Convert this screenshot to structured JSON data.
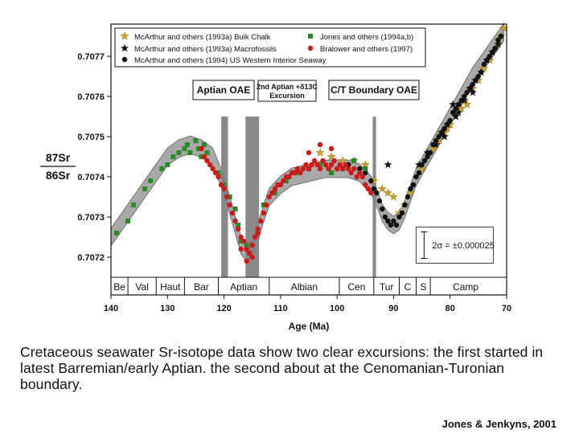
{
  "caption": "Cretaceous seawater Sr-isotope data show two clear excursions: the first started in latest Barremian/early Aptian. the second about at the Cenomanian-Turonian boundary.",
  "credit": "Jones & Jenkyns, 2001",
  "chart_data": {
    "type": "scatter",
    "xlabel": "Age (Ma)",
    "ylabel_num": "87Sr",
    "ylabel_den": "86Sr",
    "xlim": [
      140,
      70
    ],
    "ylim": [
      0.70715,
      0.70778
    ],
    "x_ticks": [
      140,
      130,
      120,
      110,
      100,
      90,
      80,
      70
    ],
    "y_ticks": [
      0.7072,
      0.7073,
      0.7074,
      0.7075,
      0.7076,
      0.7077
    ],
    "colors": {
      "gold": "#c9a032",
      "red": "#cc1a1a",
      "green": "#2a8a2a",
      "black": "#111111",
      "band": "#808080"
    },
    "legend": [
      {
        "label": "McArthur and others (1993a) Bulk Chalk",
        "marker": "star",
        "color": "#c9a032"
      },
      {
        "label": "McArthur and others (1993a) Macrofossils",
        "marker": "star",
        "color": "#111111"
      },
      {
        "label": "McArthur and others (1994) US Western Interior Seaway",
        "marker": "dot",
        "color": "#111111"
      },
      {
        "label": "Jones and others (1994a,b)",
        "marker": "square",
        "color": "#2a8a2a"
      },
      {
        "label": "Bralower and others (1997)",
        "marker": "dot",
        "color": "#cc1a1a"
      }
    ],
    "events": [
      {
        "label": "Aptian OAE",
        "x0": 120.5,
        "x1": 119.3
      },
      {
        "label": "2nd Aptian +δ13C Excursion",
        "x0": 116.2,
        "x1": 113.8
      },
      {
        "label": "C/T Boundary OAE",
        "x0": 93.7,
        "x1": 93.1
      }
    ],
    "stages": [
      {
        "name": "Be",
        "from": 140,
        "to": 137
      },
      {
        "name": "Val",
        "from": 137,
        "to": 132
      },
      {
        "name": "Haut",
        "from": 132,
        "to": 127
      },
      {
        "name": "Bar",
        "from": 127,
        "to": 121
      },
      {
        "name": "Aptian",
        "from": 121,
        "to": 112
      },
      {
        "name": "Albian",
        "from": 112,
        "to": 99.6
      },
      {
        "name": "Cen",
        "from": 99.6,
        "to": 93.5
      },
      {
        "name": "Tur",
        "from": 93.5,
        "to": 89
      },
      {
        "name": "C",
        "from": 89,
        "to": 86
      },
      {
        "name": "S",
        "from": 86,
        "to": 83.5
      },
      {
        "name": "Camp",
        "from": 83.5,
        "to": 71
      }
    ],
    "error_bar": {
      "label": "2σ = ±0.000025",
      "half_width": 2.5e-05,
      "x": 71.8,
      "y": 0.70723
    },
    "trend": {
      "x": [
        140,
        138,
        135,
        132,
        130,
        128,
        126,
        124,
        122,
        120,
        118,
        117,
        116,
        115,
        114,
        113,
        112,
        110,
        108,
        105,
        102,
        100,
        98,
        96,
        94,
        93,
        92,
        91,
        90,
        89,
        88,
        87,
        86,
        84,
        82,
        80,
        78,
        76,
        74,
        72,
        70.5
      ],
      "y": [
        0.70725,
        0.70729,
        0.70735,
        0.70741,
        0.70745,
        0.70747,
        0.70748,
        0.70747,
        0.70745,
        0.70738,
        0.70728,
        0.70723,
        0.70721,
        0.70722,
        0.70726,
        0.70731,
        0.70735,
        0.70738,
        0.7074,
        0.70741,
        0.70742,
        0.70742,
        0.70742,
        0.70741,
        0.70738,
        0.70735,
        0.70731,
        0.70729,
        0.70728,
        0.70729,
        0.70732,
        0.70736,
        0.7074,
        0.70745,
        0.7075,
        0.70755,
        0.7076,
        0.70765,
        0.70769,
        0.70773,
        0.70776
      ],
      "half_width": 2.2e-05
    },
    "series": [
      {
        "name": "McArthur and others (1993a) Bulk Chalk",
        "marker": "star",
        "color": "#c9a032",
        "x": [
          103,
          101,
          99,
          97,
          95,
          93.5,
          92,
          91,
          90,
          89,
          88,
          87,
          85,
          83,
          81,
          80,
          79,
          78,
          77,
          76,
          75,
          74,
          73,
          72,
          71.5,
          71,
          70.5,
          82,
          80.5,
          77.5
        ],
        "y": [
          0.70746,
          0.70745,
          0.70744,
          0.70744,
          0.70743,
          0.70739,
          0.70737,
          0.70736,
          0.70735,
          0.70731,
          0.70733,
          0.70736,
          0.70742,
          0.70747,
          0.70751,
          0.70753,
          0.70755,
          0.70757,
          0.70758,
          0.70762,
          0.70764,
          0.70767,
          0.70769,
          0.70772,
          0.70774,
          0.70775,
          0.70777,
          0.70749,
          0.70752,
          0.7076
        ]
      },
      {
        "name": "McArthur and others (1993a) Macrofossils",
        "marker": "star",
        "color": "#111111",
        "x": [
          91,
          85.5,
          84,
          82.5,
          81.5,
          80.5,
          79.5,
          78.5,
          77.5,
          76.5,
          75.5,
          74.5,
          73.5,
          72.5,
          71.5,
          81,
          79,
          76
        ],
        "y": [
          0.70743,
          0.70743,
          0.70746,
          0.70748,
          0.70751,
          0.70753,
          0.70758,
          0.70756,
          0.70759,
          0.70762,
          0.70764,
          0.70766,
          0.70769,
          0.70771,
          0.70773,
          0.7075,
          0.70755,
          0.70761
        ]
      },
      {
        "name": "McArthur and others (1994) US Western Interior Seaway",
        "marker": "dot",
        "color": "#111111",
        "x": [
          98,
          96,
          95,
          94,
          93.5,
          93,
          92.5,
          92,
          91.5,
          91,
          90.5,
          90,
          89.5,
          89,
          88.5,
          88,
          87.5,
          87,
          86.5,
          86,
          85.5,
          85,
          84.5,
          84,
          83.5,
          83,
          82.5,
          82,
          81.5,
          81,
          80.5,
          80,
          79.5,
          79,
          78.5,
          78,
          77.5,
          77,
          76.5,
          76,
          75.5,
          75,
          74.5,
          74,
          73.5,
          73,
          72.5,
          72,
          71.5,
          71
        ],
        "y": [
          0.70743,
          0.70742,
          0.70741,
          0.70739,
          0.70737,
          0.70736,
          0.70734,
          0.70732,
          0.7073,
          0.70729,
          0.70728,
          0.70729,
          0.70728,
          0.7073,
          0.70731,
          0.70733,
          0.70735,
          0.70737,
          0.70738,
          0.7074,
          0.70741,
          0.70743,
          0.70744,
          0.70745,
          0.70746,
          0.70748,
          0.70749,
          0.7075,
          0.70751,
          0.70752,
          0.70753,
          0.70754,
          0.70756,
          0.70757,
          0.70758,
          0.70759,
          0.7076,
          0.70761,
          0.70762,
          0.70763,
          0.70764,
          0.70765,
          0.70766,
          0.70768,
          0.70769,
          0.7077,
          0.70771,
          0.70772,
          0.70774,
          0.70775
        ]
      },
      {
        "name": "Jones and others (1994a,b)",
        "marker": "square",
        "color": "#2a8a2a",
        "x": [
          139,
          137,
          136,
          134,
          133,
          131,
          130,
          129,
          128,
          127,
          126.5,
          126,
          125,
          124.5,
          124,
          123.5,
          123,
          121,
          120,
          119,
          118,
          117.5,
          117,
          116,
          113,
          111,
          109,
          107,
          105,
          103,
          101,
          99,
          97,
          95
        ],
        "y": [
          0.70726,
          0.70729,
          0.70733,
          0.70737,
          0.70739,
          0.70742,
          0.70743,
          0.70745,
          0.70746,
          0.70747,
          0.70748,
          0.70746,
          0.70749,
          0.70747,
          0.70745,
          0.70748,
          0.70746,
          0.70741,
          0.70738,
          0.70735,
          0.70732,
          0.70728,
          0.70724,
          0.70723,
          0.70733,
          0.70736,
          0.70739,
          0.70741,
          0.70742,
          0.70743,
          0.70741,
          0.70742,
          0.70744,
          0.70742
        ]
      },
      {
        "name": "Bralower and others (1997)",
        "marker": "dot",
        "color": "#cc1a1a",
        "x": [
          124,
          123.5,
          123,
          122.5,
          122,
          121.5,
          121,
          120.5,
          120,
          119.5,
          119,
          118.5,
          118,
          117.5,
          117,
          116.5,
          116,
          115.5,
          115,
          114.5,
          114,
          113.5,
          113,
          112.5,
          112,
          111.5,
          111,
          110.5,
          110,
          109.5,
          109,
          108.5,
          108,
          107.5,
          107,
          106.5,
          106,
          105.5,
          105,
          104.5,
          104,
          103.5,
          103,
          102.5,
          102,
          101.5,
          101,
          100.5,
          100,
          99.5,
          99,
          98.5,
          98,
          97.5,
          97,
          96.5,
          96,
          95.5,
          95,
          94.5,
          94,
          103,
          105,
          101,
          116,
          115,
          117,
          114
        ],
        "y": [
          0.70747,
          0.70745,
          0.70744,
          0.70743,
          0.70742,
          0.70741,
          0.7074,
          0.70738,
          0.70737,
          0.70735,
          0.70733,
          0.70731,
          0.70729,
          0.70727,
          0.70725,
          0.70724,
          0.70722,
          0.70721,
          0.70723,
          0.70725,
          0.70727,
          0.70729,
          0.70731,
          0.70733,
          0.70735,
          0.70736,
          0.70737,
          0.70738,
          0.70738,
          0.70739,
          0.7074,
          0.7074,
          0.70741,
          0.70741,
          0.70742,
          0.70741,
          0.70742,
          0.70743,
          0.70742,
          0.70743,
          0.70744,
          0.70743,
          0.70742,
          0.70744,
          0.70743,
          0.70742,
          0.70743,
          0.70744,
          0.70742,
          0.70743,
          0.70742,
          0.70743,
          0.70742,
          0.70741,
          0.70742,
          0.7074,
          0.70741,
          0.7074,
          0.70738,
          0.70737,
          0.70736,
          0.70748,
          0.70746,
          0.70747,
          0.70719,
          0.7072,
          0.70722,
          0.70726
        ]
      }
    ]
  }
}
